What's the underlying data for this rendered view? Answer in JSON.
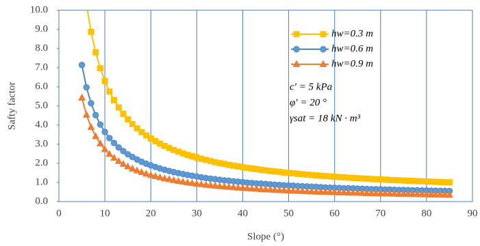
{
  "chart_data": {
    "type": "line",
    "xlabel": "Slope (°)",
    "ylabel": "Safty factor",
    "x": [
      5,
      6,
      7,
      8,
      9,
      10,
      11,
      12,
      13,
      14,
      15,
      16,
      17,
      18,
      19,
      20,
      21,
      22,
      23,
      24,
      25,
      26,
      27,
      28,
      29,
      30,
      31,
      32,
      33,
      34,
      35,
      36,
      37,
      38,
      39,
      40,
      41,
      42,
      43,
      44,
      45,
      46,
      47,
      48,
      49,
      50,
      51,
      52,
      53,
      54,
      55,
      56,
      57,
      58,
      59,
      60,
      61,
      62,
      63,
      64,
      65,
      66,
      67,
      68,
      69,
      70,
      71,
      72,
      73,
      74,
      75,
      76,
      77,
      78,
      79,
      80,
      81,
      82,
      83,
      84,
      85
    ],
    "series": [
      {
        "name": "hw=0.3 m",
        "color": "#ffc000",
        "marker": "square",
        "values": [
          null,
          10.3,
          8.87,
          7.8,
          6.97,
          6.3,
          5.75,
          5.3,
          4.92,
          4.59,
          4.3,
          4.05,
          3.83,
          3.63,
          3.46,
          3.3,
          3.16,
          3.03,
          2.91,
          2.8,
          2.7,
          2.61,
          2.52,
          2.44,
          2.37,
          2.3,
          2.24,
          2.18,
          2.12,
          2.06,
          2.01,
          1.97,
          1.92,
          1.88,
          1.84,
          1.8,
          1.76,
          1.73,
          1.7,
          1.66,
          1.63,
          1.6,
          1.58,
          1.55,
          1.52,
          1.5,
          1.48,
          1.45,
          1.43,
          1.41,
          1.39,
          1.37,
          1.35,
          1.33,
          1.32,
          1.3,
          1.28,
          1.27,
          1.25,
          1.24,
          1.22,
          1.21,
          1.2,
          1.18,
          1.17,
          1.16,
          1.15,
          1.13,
          1.12,
          1.11,
          1.1,
          1.09,
          1.08,
          1.07,
          1.06,
          1.05,
          1.04,
          1.03,
          1.02,
          1.01,
          1.01
        ]
      },
      {
        "name": "hw=0.6 m",
        "color": "#4f86c6",
        "marker": "circle",
        "values": [
          7.14,
          5.97,
          5.14,
          4.52,
          4.03,
          3.64,
          3.32,
          3.06,
          2.83,
          2.64,
          2.47,
          2.33,
          2.2,
          2.08,
          1.98,
          1.89,
          1.81,
          1.73,
          1.66,
          1.6,
          1.54,
          1.49,
          1.44,
          1.39,
          1.35,
          1.31,
          1.27,
          1.23,
          1.2,
          1.17,
          1.14,
          1.11,
          1.09,
          1.06,
          1.04,
          1.02,
          0.99,
          0.97,
          0.95,
          0.94,
          0.92,
          0.9,
          0.88,
          0.87,
          0.85,
          0.84,
          0.83,
          0.81,
          0.8,
          0.79,
          0.78,
          0.77,
          0.75,
          0.74,
          0.73,
          0.72,
          0.71,
          0.7,
          0.7,
          0.69,
          0.68,
          0.67,
          0.66,
          0.65,
          0.65,
          0.64,
          0.63,
          0.63,
          0.62,
          0.61,
          0.61,
          0.6,
          0.59,
          0.59,
          0.58,
          0.58,
          0.57,
          0.57,
          0.56,
          0.56,
          0.55
        ]
      },
      {
        "name": "hw=0.9 m",
        "color": "#ed7d31",
        "marker": "triangle",
        "values": [
          5.43,
          4.53,
          3.89,
          3.41,
          3.03,
          2.73,
          2.48,
          2.28,
          2.11,
          1.96,
          1.83,
          1.72,
          1.62,
          1.53,
          1.45,
          1.38,
          1.32,
          1.26,
          1.2,
          1.16,
          1.11,
          1.07,
          1.03,
          0.99,
          0.96,
          0.93,
          0.9,
          0.87,
          0.85,
          0.82,
          0.8,
          0.78,
          0.76,
          0.74,
          0.72,
          0.71,
          0.69,
          0.67,
          0.66,
          0.64,
          0.63,
          0.62,
          0.6,
          0.59,
          0.58,
          0.57,
          0.56,
          0.55,
          0.54,
          0.53,
          0.52,
          0.51,
          0.5,
          0.5,
          0.49,
          0.48,
          0.47,
          0.47,
          0.46,
          0.45,
          0.45,
          0.44,
          0.43,
          0.43,
          0.42,
          0.42,
          0.41,
          0.41,
          0.4,
          0.39,
          0.39,
          0.39,
          0.38,
          0.38,
          0.37,
          0.37,
          0.36,
          0.36,
          0.36,
          0.35,
          0.35
        ]
      }
    ],
    "annotations": [
      "c′ = 5 kPa",
      "φ′ = 20 °",
      "γsat = 18 kN · m³"
    ],
    "xlim": [
      0,
      90
    ],
    "xticks": [
      0,
      10,
      20,
      30,
      40,
      50,
      60,
      70,
      80,
      90
    ],
    "ylim": [
      0,
      10
    ],
    "yticks": [
      {
        "value": 0,
        "label": "0.0"
      },
      {
        "value": 1,
        "label": "1.0"
      },
      {
        "value": 2,
        "label": "2.0"
      },
      {
        "value": 3,
        "label": "3.0"
      },
      {
        "value": 4,
        "label": "4.0"
      },
      {
        "value": 5,
        "label": "5.0"
      },
      {
        "value": 6,
        "label": "6.0"
      },
      {
        "value": 7,
        "label": "7.0"
      },
      {
        "value": 8,
        "label": "8.0"
      },
      {
        "value": 9,
        "label": "9.0"
      },
      {
        "value": 10,
        "label": "10.0"
      }
    ],
    "grid": "x",
    "legend": "upper-right"
  }
}
